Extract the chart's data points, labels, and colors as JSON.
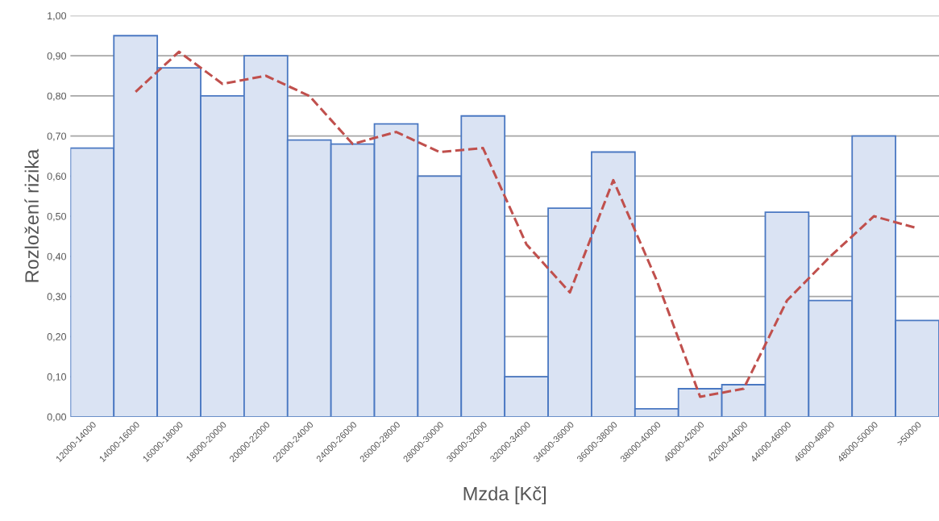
{
  "chart_data": {
    "type": "bar",
    "xlabel": "Mzda [Kč]",
    "ylabel": "Rozložení rizika",
    "categories": [
      "12000-14000",
      "14000-16000",
      "16000-18000",
      "18000-20000",
      "20000-22000",
      "22000-24000",
      "24000-26000",
      "26000-28000",
      "28000-30000",
      "30000-32000",
      "32000-34000",
      "34000-36000",
      "36000-38000",
      "38000-40000",
      "40000-42000",
      "42000-44000",
      "44000-46000",
      "46000-48000",
      "48000-50000",
      ">50000"
    ],
    "series": [
      {
        "color": "#dae3f3",
        "values": [
          0.67,
          0.95,
          0.87,
          0.8,
          0.9,
          0.69,
          0.68,
          0.73,
          0.6,
          0.75,
          0.1,
          0.52,
          0.66,
          0.02,
          0.07,
          0.08,
          0.51,
          0.29,
          0.7,
          0.24
        ]
      },
      {
        "type": "line",
        "color": "#c0504d",
        "line_style": "dashed",
        "marker": "none",
        "values": [
          null,
          0.81,
          0.91,
          0.83,
          0.85,
          0.8,
          0.68,
          0.71,
          0.66,
          0.67,
          0.43,
          0.31,
          0.59,
          0.34,
          0.05,
          0.07,
          0.29,
          0.4,
          0.5,
          0.47
        ]
      }
    ],
    "ylim": [
      0,
      1
    ],
    "yticks": [
      {
        "value": 0,
        "label": "0,00"
      },
      {
        "value": 0.1,
        "label": "0,10"
      },
      {
        "value": 0.2,
        "label": "0,20"
      },
      {
        "value": 0.3,
        "label": "0,30"
      },
      {
        "value": 0.4,
        "label": "0,40"
      },
      {
        "value": 0.5,
        "label": "0,50"
      },
      {
        "value": 0.6,
        "label": "0,60"
      },
      {
        "value": 0.7,
        "label": "0,70"
      },
      {
        "value": 0.8,
        "label": "0,80"
      },
      {
        "value": 0.9,
        "label": "0,90"
      },
      {
        "value": 1,
        "label": "1,00"
      }
    ],
    "grid": "y"
  }
}
